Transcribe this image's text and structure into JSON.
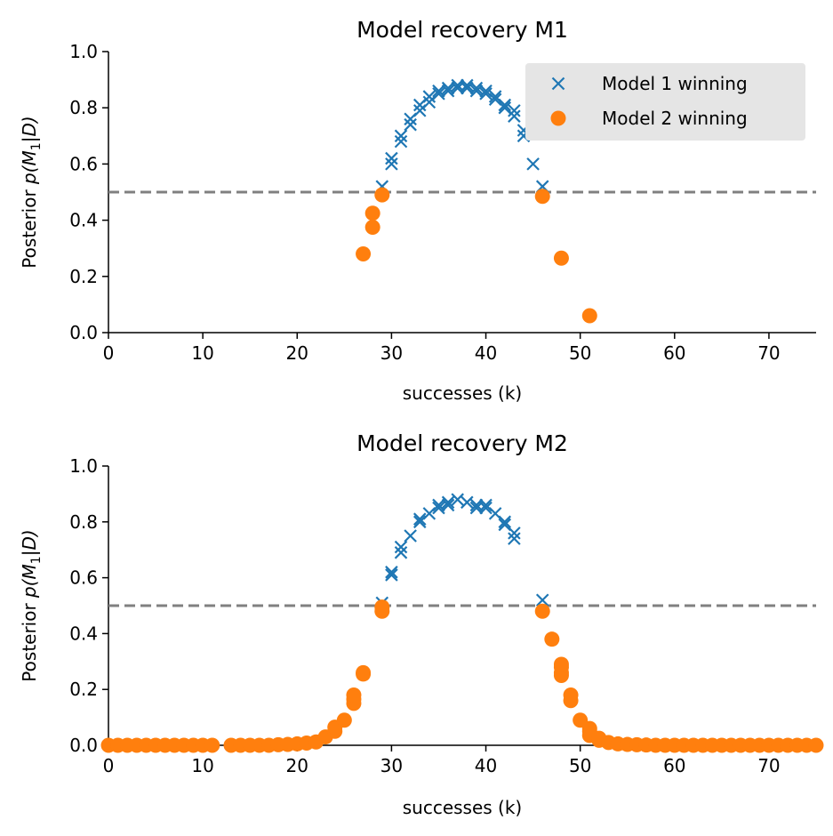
{
  "colors": {
    "model1": "#1f77b4",
    "model2": "#ff7f0e",
    "threshold": "#808080",
    "legend_bg": "#e5e5e5"
  },
  "chart_data": [
    {
      "type": "scatter",
      "title": "Model recovery M1",
      "xlabel": "successes (k)",
      "ylabel_prefix": "Posterior ",
      "ylabel_math": "p(M",
      "ylabel_sub": "1",
      "ylabel_suffix": "|D)",
      "xlim": [
        0,
        75
      ],
      "ylim": [
        0,
        1
      ],
      "xticks": [
        "0",
        "10",
        "20",
        "30",
        "40",
        "50",
        "60",
        "70"
      ],
      "yticks": [
        "0.0",
        "0.2",
        "0.4",
        "0.6",
        "0.8",
        "1.0"
      ],
      "threshold": 0.5,
      "legend": {
        "location": "top-right",
        "entries": [
          "Model 1 winning",
          "Model 2 winning"
        ]
      },
      "series": [
        {
          "name": "Model 1 winning",
          "marker": "x",
          "points": [
            [
              29,
              0.52
            ],
            [
              30,
              0.6
            ],
            [
              30,
              0.62
            ],
            [
              31,
              0.68
            ],
            [
              31,
              0.7
            ],
            [
              32,
              0.74
            ],
            [
              32,
              0.76
            ],
            [
              33,
              0.79
            ],
            [
              33,
              0.81
            ],
            [
              34,
              0.82
            ],
            [
              34,
              0.84
            ],
            [
              35,
              0.85
            ],
            [
              35,
              0.86
            ],
            [
              36,
              0.86
            ],
            [
              36,
              0.87
            ],
            [
              37,
              0.87
            ],
            [
              37,
              0.88
            ],
            [
              38,
              0.87
            ],
            [
              38,
              0.88
            ],
            [
              39,
              0.86
            ],
            [
              39,
              0.87
            ],
            [
              40,
              0.85
            ],
            [
              40,
              0.86
            ],
            [
              41,
              0.83
            ],
            [
              41,
              0.84
            ],
            [
              42,
              0.8
            ],
            [
              42,
              0.81
            ],
            [
              43,
              0.77
            ],
            [
              43,
              0.79
            ],
            [
              44,
              0.7
            ],
            [
              44,
              0.72
            ],
            [
              45,
              0.6
            ],
            [
              46,
              0.52
            ]
          ]
        },
        {
          "name": "Model 2 winning",
          "marker": "o",
          "points": [
            [
              27,
              0.28
            ],
            [
              28,
              0.375
            ],
            [
              28,
              0.425
            ],
            [
              29,
              0.49
            ],
            [
              46,
              0.485
            ],
            [
              48,
              0.265
            ],
            [
              51,
              0.06
            ]
          ]
        }
      ]
    },
    {
      "type": "scatter",
      "title": "Model recovery M2",
      "xlabel": "successes (k)",
      "ylabel_prefix": "Posterior ",
      "ylabel_math": "p(M",
      "ylabel_sub": "1",
      "ylabel_suffix": "|D)",
      "xlim": [
        0,
        75
      ],
      "ylim": [
        0,
        1
      ],
      "xticks": [
        "0",
        "10",
        "20",
        "30",
        "40",
        "50",
        "60",
        "70"
      ],
      "yticks": [
        "0.0",
        "0.2",
        "0.4",
        "0.6",
        "0.8",
        "1.0"
      ],
      "threshold": 0.5,
      "series": [
        {
          "name": "Model 1 winning",
          "marker": "x",
          "points": [
            [
              29,
              0.51
            ],
            [
              30,
              0.61
            ],
            [
              30,
              0.62
            ],
            [
              31,
              0.69
            ],
            [
              31,
              0.71
            ],
            [
              32,
              0.75
            ],
            [
              33,
              0.8
            ],
            [
              33,
              0.81
            ],
            [
              34,
              0.83
            ],
            [
              35,
              0.85
            ],
            [
              35,
              0.86
            ],
            [
              36,
              0.86
            ],
            [
              36,
              0.87
            ],
            [
              37,
              0.88
            ],
            [
              38,
              0.87
            ],
            [
              39,
              0.85
            ],
            [
              39,
              0.86
            ],
            [
              40,
              0.85
            ],
            [
              40,
              0.86
            ],
            [
              41,
              0.83
            ],
            [
              42,
              0.79
            ],
            [
              42,
              0.8
            ],
            [
              43,
              0.74
            ],
            [
              43,
              0.76
            ],
            [
              46,
              0.52
            ]
          ]
        },
        {
          "name": "Model 2 winning",
          "marker": "o",
          "points": [
            [
              0,
              0.0
            ],
            [
              1,
              0.0
            ],
            [
              2,
              0.0
            ],
            [
              3,
              0.0
            ],
            [
              4,
              0.0
            ],
            [
              5,
              0.0
            ],
            [
              6,
              0.0
            ],
            [
              7,
              0.0
            ],
            [
              8,
              0.0
            ],
            [
              9,
              0.0
            ],
            [
              10,
              0.0
            ],
            [
              11,
              0.0
            ],
            [
              13,
              0.0
            ],
            [
              14,
              0.0
            ],
            [
              15,
              0.0
            ],
            [
              16,
              0.0
            ],
            [
              17,
              0.0
            ],
            [
              18,
              0.002
            ],
            [
              19,
              0.003
            ],
            [
              20,
              0.005
            ],
            [
              21,
              0.008
            ],
            [
              22,
              0.012
            ],
            [
              23,
              0.03
            ],
            [
              24,
              0.05
            ],
            [
              24,
              0.065
            ],
            [
              25,
              0.09
            ],
            [
              26,
              0.15
            ],
            [
              26,
              0.165
            ],
            [
              26,
              0.18
            ],
            [
              27,
              0.255
            ],
            [
              27,
              0.26
            ],
            [
              29,
              0.48
            ],
            [
              29,
              0.495
            ],
            [
              46,
              0.48
            ],
            [
              47,
              0.38
            ],
            [
              48,
              0.25
            ],
            [
              48,
              0.26
            ],
            [
              48,
              0.28
            ],
            [
              48,
              0.29
            ],
            [
              49,
              0.16
            ],
            [
              49,
              0.18
            ],
            [
              50,
              0.09
            ],
            [
              51,
              0.035
            ],
            [
              51,
              0.05
            ],
            [
              51,
              0.06
            ],
            [
              52,
              0.018
            ],
            [
              52,
              0.025
            ],
            [
              53,
              0.01
            ],
            [
              54,
              0.005
            ],
            [
              55,
              0.003
            ],
            [
              56,
              0.002
            ],
            [
              57,
              0.001
            ],
            [
              58,
              0.0
            ],
            [
              59,
              0.0
            ],
            [
              60,
              0.0
            ],
            [
              61,
              0.0
            ],
            [
              62,
              0.0
            ],
            [
              63,
              0.0
            ],
            [
              64,
              0.0
            ],
            [
              65,
              0.0
            ],
            [
              66,
              0.0
            ],
            [
              67,
              0.0
            ],
            [
              68,
              0.0
            ],
            [
              69,
              0.0
            ],
            [
              70,
              0.0
            ],
            [
              71,
              0.0
            ],
            [
              72,
              0.0
            ],
            [
              73,
              0.0
            ],
            [
              74,
              0.0
            ],
            [
              75,
              0.0
            ]
          ]
        }
      ]
    }
  ]
}
